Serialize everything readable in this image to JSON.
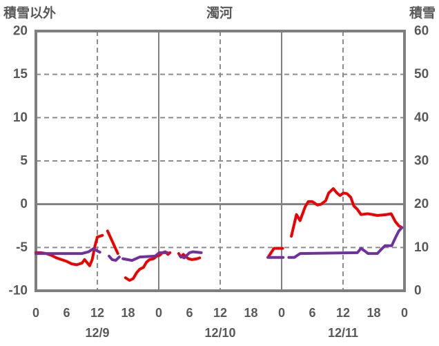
{
  "header": {
    "left_axis_title": "積雪以外",
    "station_title": "濁河",
    "right_axis_title": "積雪"
  },
  "colors": {
    "text": "#595959",
    "border": "#7f7f7f",
    "grid_solid": "#808080",
    "grid_dashed": "#8c8c8c",
    "red_series": "#ef0000",
    "purple_series": "#7030a0",
    "background": "#ffffff"
  },
  "chart_data": {
    "type": "line",
    "title": "濁河",
    "legend": "none",
    "grid": "on",
    "left_axis": {
      "label": "積雪以外",
      "min": -10,
      "max": 20,
      "ticks": [
        20,
        15,
        10,
        5,
        0,
        -5,
        -10
      ]
    },
    "right_axis": {
      "label": "積雪",
      "min": 0,
      "max": 60,
      "ticks": [
        60,
        50,
        40,
        30,
        20,
        10,
        0
      ]
    },
    "x_axis": {
      "min_hour": 0,
      "max_hour": 72,
      "tick_step_hours": 6,
      "hour_labels": [
        "0",
        "6",
        "12",
        "18",
        "0",
        "6",
        "12",
        "18",
        "0",
        "6",
        "12",
        "18",
        "0"
      ],
      "date_labels": [
        {
          "label": "12/9",
          "hour": 12
        },
        {
          "label": "12/10",
          "hour": 36
        },
        {
          "label": "12/11",
          "hour": 60
        }
      ],
      "solid_gridline_hours": [
        24,
        48
      ],
      "dashed_gridline_hours": [
        12,
        36,
        60
      ]
    },
    "series": [
      {
        "name": "red-line",
        "axis": "left",
        "color": "#ef0000",
        "segments": [
          [
            [
              0,
              -5.6
            ],
            [
              1,
              -5.6
            ],
            [
              2,
              -5.7
            ],
            [
              3,
              -5.9
            ],
            [
              4,
              -6.2
            ],
            [
              5,
              -6.4
            ],
            [
              6,
              -6.6
            ],
            [
              7,
              -6.9
            ],
            [
              8,
              -7.0
            ],
            [
              9,
              -6.8
            ],
            [
              9.5,
              -6.4
            ],
            [
              10.5,
              -7.1
            ],
            [
              11,
              -6.4
            ],
            [
              11.5,
              -4.9
            ],
            [
              12,
              -3.8
            ],
            [
              13,
              -3.6
            ]
          ],
          [
            [
              14,
              -3.1
            ],
            [
              15,
              -4.4
            ],
            [
              16,
              -5.7
            ]
          ],
          [
            [
              17.5,
              -8.5
            ],
            [
              18.3,
              -8.8
            ],
            [
              19,
              -8.6
            ],
            [
              19.7,
              -7.9
            ],
            [
              20.3,
              -7.5
            ],
            [
              21,
              -7.3
            ],
            [
              21.6,
              -6.7
            ],
            [
              22.2,
              -6.4
            ],
            [
              23,
              -6.3
            ],
            [
              23.6,
              -6.0
            ],
            [
              24.2,
              -5.9
            ],
            [
              24.7,
              -5.6
            ],
            [
              25.3,
              -5.5
            ],
            [
              25.8,
              -5.8
            ],
            [
              26.2,
              -5.6
            ]
          ],
          [
            [
              27.9,
              -5.7
            ],
            [
              28.3,
              -6.1
            ],
            [
              28.8,
              -5.8
            ],
            [
              29.8,
              -6.3
            ],
            [
              30.5,
              -6.4
            ],
            [
              31.5,
              -6.3
            ],
            [
              32,
              -6.2
            ]
          ],
          [
            [
              45.4,
              -6.1
            ],
            [
              46.5,
              -5.1
            ],
            [
              48.2,
              -5.1
            ]
          ],
          [
            [
              49.9,
              -3.7
            ],
            [
              50.9,
              -1.2
            ],
            [
              51.6,
              -1.9
            ],
            [
              52.6,
              -0.3
            ],
            [
              53.2,
              0.3
            ],
            [
              54,
              0.3
            ],
            [
              55,
              -0.1
            ],
            [
              55.7,
              0.0
            ],
            [
              56.6,
              0.4
            ],
            [
              57.2,
              1.3
            ],
            [
              58.1,
              1.8
            ],
            [
              58.8,
              1.3
            ],
            [
              59.4,
              1.0
            ],
            [
              60.1,
              1.3
            ],
            [
              60.8,
              1.2
            ],
            [
              61.5,
              0.8
            ],
            [
              62.1,
              -0.2
            ],
            [
              62.8,
              -0.6
            ],
            [
              63.5,
              -1.2
            ],
            [
              64.8,
              -1.1
            ],
            [
              65.8,
              -1.2
            ],
            [
              66.7,
              -1.3
            ],
            [
              68.5,
              -1.2
            ],
            [
              69.4,
              -1.1
            ],
            [
              70.2,
              -2.0
            ],
            [
              70.9,
              -2.5
            ],
            [
              71.5,
              -2.7
            ]
          ]
        ]
      },
      {
        "name": "purple-line",
        "axis": "right",
        "color": "#7030a0",
        "segments": [
          [
            [
              0,
              8.6
            ],
            [
              9,
              8.6
            ],
            [
              10.3,
              9.0
            ],
            [
              11.2,
              9.7
            ],
            [
              12,
              9.2
            ],
            [
              12.5,
              8.9
            ]
          ],
          [
            [
              14.3,
              8.0
            ],
            [
              14.9,
              7.2
            ],
            [
              15.6,
              7.0
            ],
            [
              16.3,
              7.8
            ]
          ],
          [
            [
              17,
              7.4
            ],
            [
              18.8,
              7.0
            ],
            [
              20.3,
              7.8
            ],
            [
              23.3,
              8.0
            ],
            [
              24.1,
              8.8
            ],
            [
              25.7,
              8.8
            ]
          ],
          [
            [
              28.2,
              8.0
            ],
            [
              29,
              7.6
            ],
            [
              30,
              8.8
            ],
            [
              30.7,
              9.0
            ],
            [
              32.3,
              8.8
            ]
          ],
          [
            [
              45.3,
              7.7
            ],
            [
              48.3,
              7.7
            ]
          ],
          [
            [
              49.4,
              7.7
            ],
            [
              50.5,
              7.7
            ],
            [
              51.6,
              8.6
            ],
            [
              62.8,
              8.8
            ],
            [
              63.5,
              9.8
            ],
            [
              64.2,
              9.2
            ],
            [
              64.9,
              8.6
            ],
            [
              66.7,
              8.6
            ],
            [
              67.5,
              9.6
            ],
            [
              68.2,
              10.4
            ],
            [
              69.5,
              10.4
            ],
            [
              70.2,
              12.2
            ],
            [
              70.9,
              13.8
            ],
            [
              71.5,
              14.6
            ]
          ]
        ]
      }
    ]
  }
}
